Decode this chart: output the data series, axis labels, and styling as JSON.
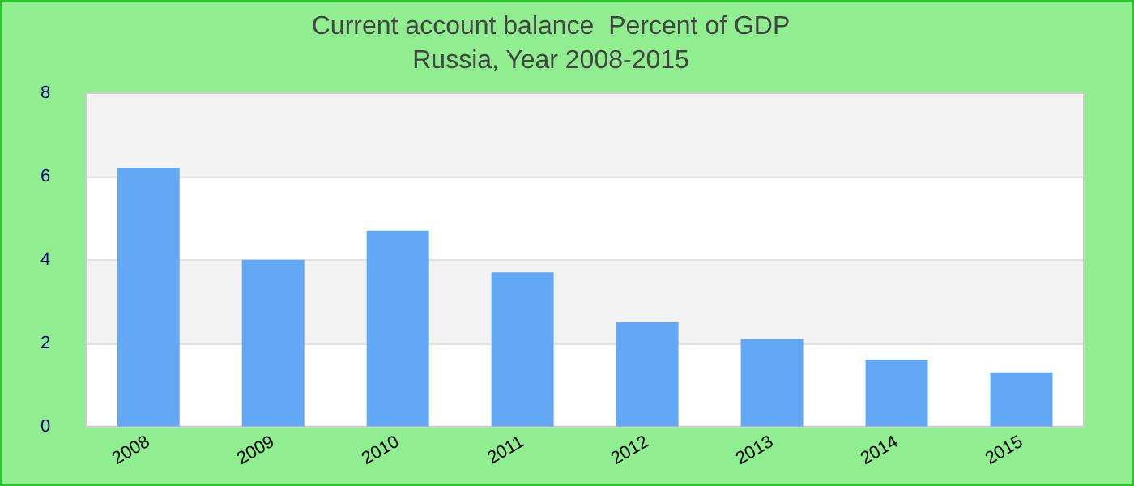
{
  "chart_data": {
    "type": "bar",
    "title": "Current account balance  Percent of GDP",
    "subtitle": "Russia, Year 2008-2015",
    "categories": [
      "2008",
      "2009",
      "2010",
      "2011",
      "2012",
      "2013",
      "2014",
      "2015"
    ],
    "values": [
      6.2,
      4.0,
      4.7,
      3.7,
      2.5,
      2.1,
      1.6,
      1.3
    ],
    "color": "#62a8f5",
    "ylim": [
      0,
      8
    ],
    "yticks": [
      0,
      2,
      4,
      6,
      8
    ],
    "grid": "y",
    "legend": false
  }
}
